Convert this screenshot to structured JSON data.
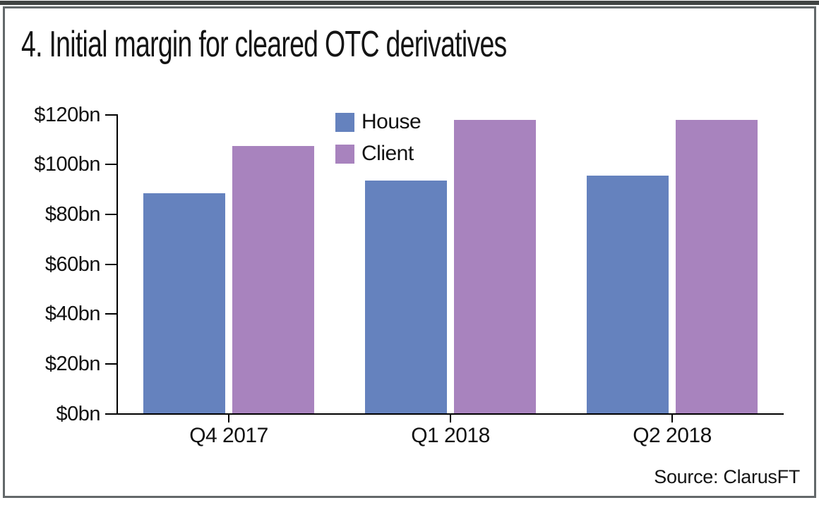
{
  "frame": {
    "top_rule_color": "#404342",
    "border_color": "#63686a"
  },
  "chart_data": {
    "type": "bar",
    "title": "4. Initial margin for cleared OTC derivatives",
    "categories": [
      "Q4 2017",
      "Q1 2018",
      "Q2 2018"
    ],
    "series": [
      {
        "name": "House",
        "color": "#6582be",
        "values": [
          88.5,
          93.5,
          95.5
        ]
      },
      {
        "name": "Client",
        "color": "#a883be",
        "values": [
          107.5,
          118,
          118
        ]
      }
    ],
    "unit": "$bn",
    "ylim": [
      0,
      120
    ],
    "y_step": 20,
    "y_tick_labels": [
      "$0bn",
      "$20bn",
      "$40bn",
      "$60bn",
      "$80bn",
      "$100bn",
      "$120bn"
    ],
    "xlabel": "",
    "ylabel": "",
    "grid": false,
    "legend_position": "inside-top-center",
    "source": "Source: ClarusFT"
  }
}
